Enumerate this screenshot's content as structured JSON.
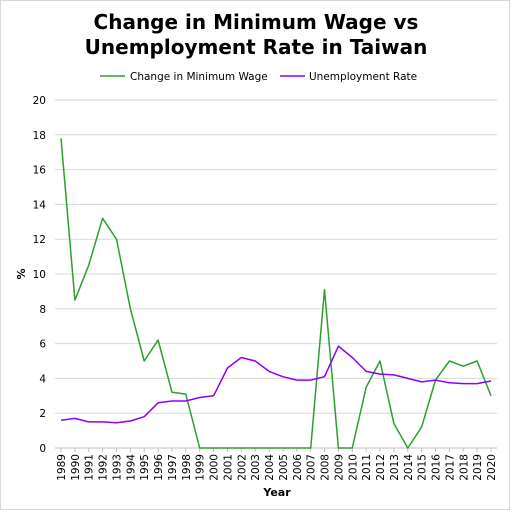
{
  "chart_data": {
    "type": "line",
    "title_lines": [
      "Change in Minimum Wage vs",
      "Unemployment Rate in Taiwan"
    ],
    "xlabel": "Year",
    "ylabel": "%",
    "ylim": [
      0,
      20
    ],
    "yticks": [
      0,
      2,
      4,
      6,
      8,
      10,
      12,
      14,
      16,
      18,
      20
    ],
    "grid": "horizontal",
    "legend_position": "top",
    "categories": [
      "1989",
      "1990",
      "1991",
      "1992",
      "1993",
      "1994",
      "1995",
      "1996",
      "1997",
      "1998",
      "1999",
      "2000",
      "2001",
      "2002",
      "2003",
      "2004",
      "2005",
      "2006",
      "2007",
      "2008",
      "2009",
      "2010",
      "2011",
      "2012",
      "2013",
      "2014",
      "2015",
      "2016",
      "2017",
      "2018",
      "2019",
      "2020"
    ],
    "series": [
      {
        "name": "Change in Minimum Wage",
        "color": "#2ca02c",
        "values": [
          17.8,
          8.5,
          10.5,
          13.2,
          12.0,
          8.0,
          5.0,
          6.2,
          3.2,
          3.1,
          0,
          0,
          0,
          0,
          0,
          0,
          0,
          0,
          0,
          9.1,
          0,
          0,
          3.5,
          5.0,
          1.4,
          0,
          1.2,
          3.9,
          5.0,
          4.7,
          5.0,
          3.0
        ]
      },
      {
        "name": "Unemployment Rate",
        "color": "#8b00ff",
        "values": [
          1.6,
          1.7,
          1.5,
          1.5,
          1.45,
          1.55,
          1.8,
          2.6,
          2.7,
          2.7,
          2.9,
          3.0,
          4.6,
          5.2,
          5.0,
          4.4,
          4.1,
          3.9,
          3.9,
          4.1,
          5.85,
          5.2,
          4.4,
          4.25,
          4.2,
          4.0,
          3.8,
          3.9,
          3.75,
          3.7,
          3.7,
          3.85
        ]
      }
    ]
  }
}
